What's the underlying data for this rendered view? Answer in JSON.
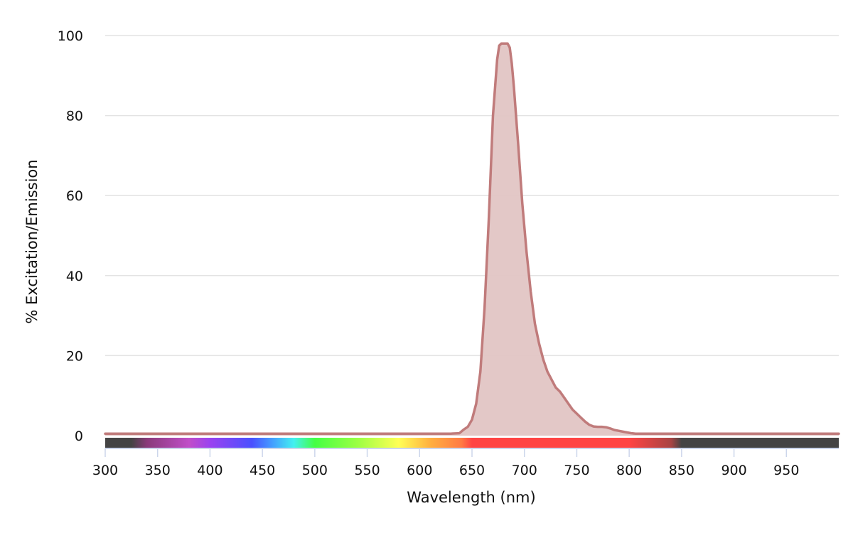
{
  "chart_data": {
    "type": "area",
    "title": "",
    "xlabel": "Wavelength (nm)",
    "ylabel": "% Excitation/Emission",
    "xlim": [
      300,
      1000
    ],
    "ylim": [
      0,
      100
    ],
    "x_ticks": [
      300,
      350,
      400,
      450,
      500,
      550,
      600,
      650,
      700,
      750,
      800,
      850,
      900,
      950
    ],
    "y_ticks": [
      0,
      20,
      40,
      60,
      80,
      100
    ],
    "grid": true,
    "legend": "none",
    "colors": {
      "line": "#c07b7b",
      "fill": "#e2c5c4",
      "grid": "#e3e3e3",
      "axis": "#ccd6eb"
    },
    "spectrum_bar": {
      "x": [
        300,
        325,
        340,
        380,
        400,
        440,
        460,
        480,
        500,
        540,
        580,
        610,
        640,
        650,
        800,
        840,
        850,
        1000
      ],
      "colors": [
        "#444444",
        "#444444",
        "#8a3a7a",
        "#c04ec8",
        "#9a42f0",
        "#4a50ff",
        "#44a0ff",
        "#44f0f0",
        "#44ff44",
        "#9aff44",
        "#ffff55",
        "#ffb040",
        "#ff7a44",
        "#ff4444",
        "#ff4444",
        "#a84444",
        "#444444",
        "#444444"
      ]
    },
    "series": [
      {
        "x": [
          300,
          630,
          638,
          642,
          646,
          650,
          654,
          658,
          662,
          666,
          670,
          674,
          676,
          678,
          680,
          684,
          686,
          688,
          690,
          694,
          698,
          702,
          706,
          710,
          714,
          718,
          722,
          726,
          730,
          734,
          738,
          742,
          746,
          750,
          754,
          758,
          762,
          766,
          770,
          774,
          778,
          782,
          786,
          790,
          794,
          798,
          802,
          806,
          850,
          1000
        ],
        "y": [
          0.5,
          0.5,
          0.6,
          1.5,
          2.2,
          4.0,
          8.0,
          16.0,
          32.0,
          54.0,
          80.0,
          94.0,
          97.5,
          98.0,
          98.0,
          98.0,
          97.0,
          93.0,
          87.0,
          73.0,
          58.0,
          46.0,
          36.0,
          28.0,
          23.0,
          19.0,
          16.0,
          14.0,
          12.0,
          11.0,
          9.5,
          8.0,
          6.5,
          5.5,
          4.5,
          3.5,
          2.7,
          2.3,
          2.2,
          2.2,
          2.1,
          1.8,
          1.4,
          1.2,
          1.0,
          0.8,
          0.6,
          0.5,
          0.5,
          0.5
        ]
      }
    ]
  }
}
